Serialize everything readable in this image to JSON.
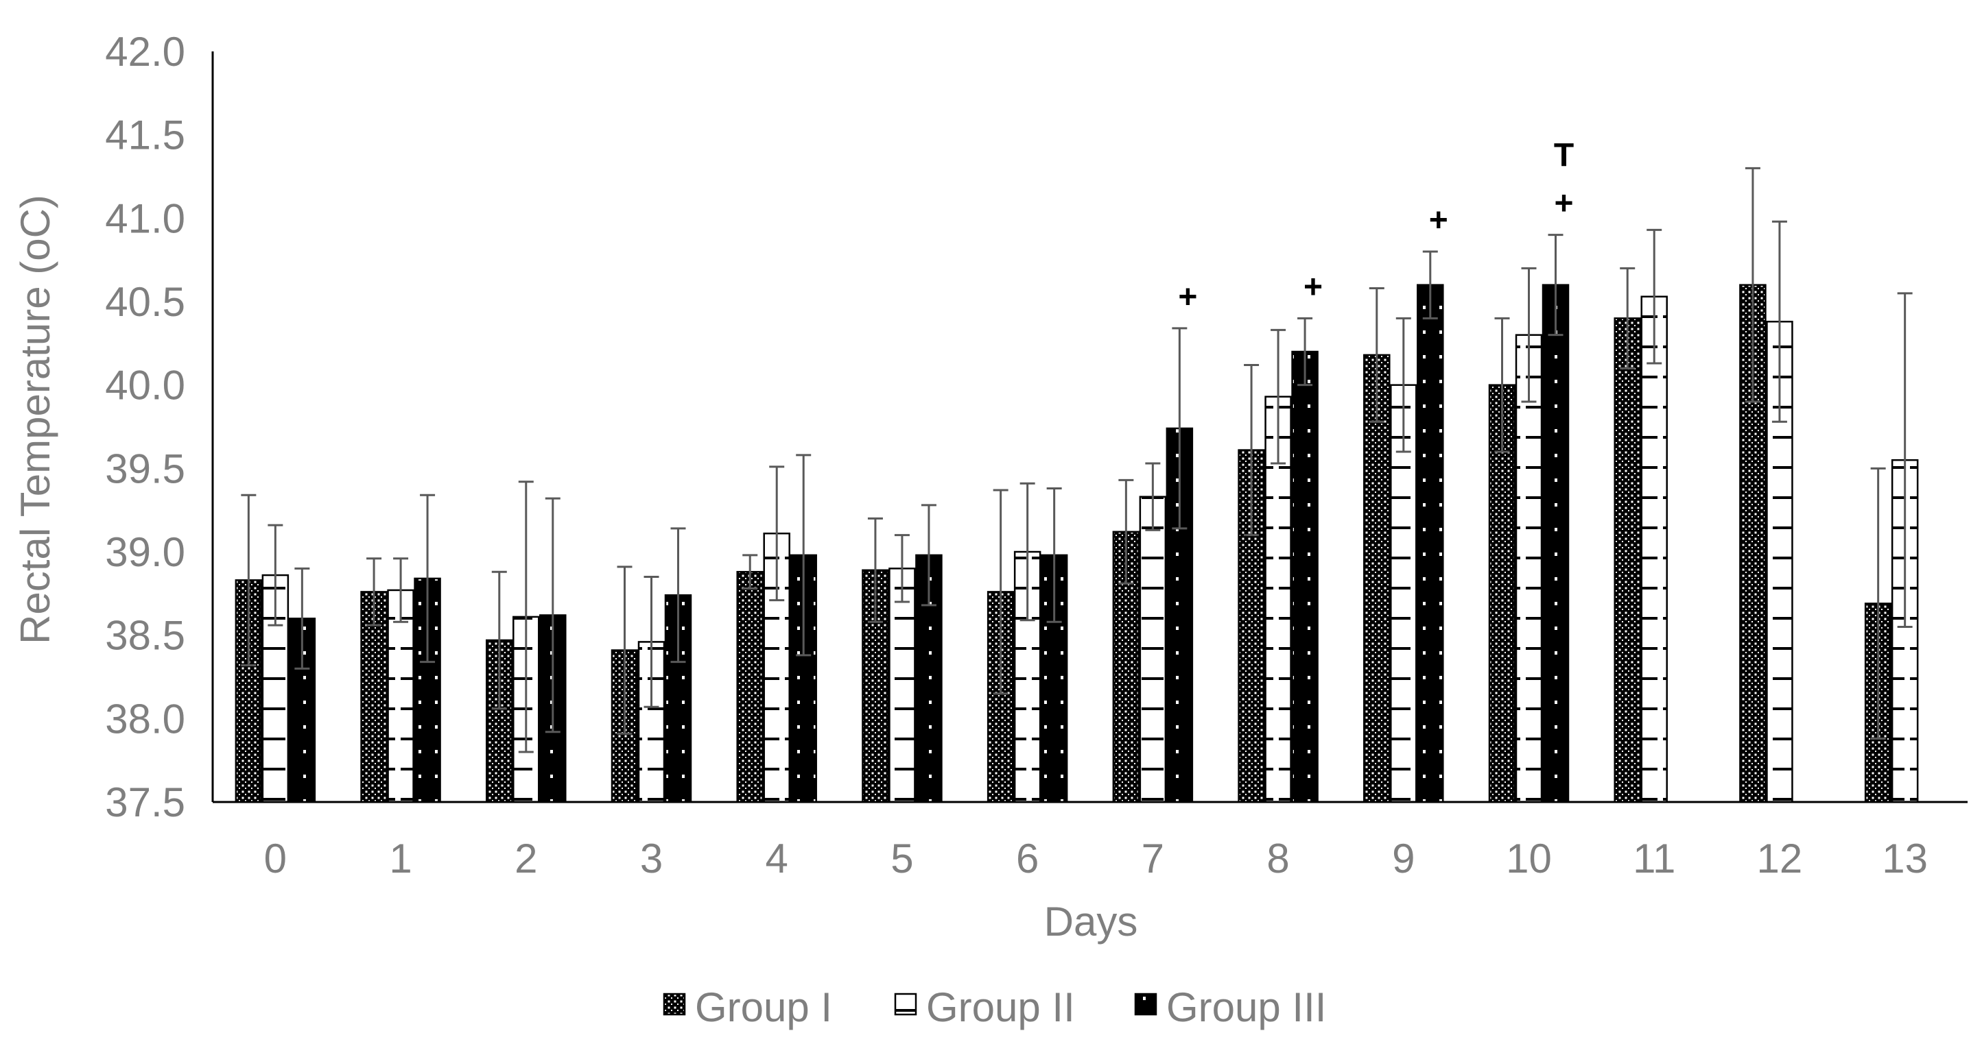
{
  "chart_data": {
    "type": "bar",
    "xlabel": "Days",
    "ylabel_prefix": "Rectal Temperature (",
    "ylabel_unit": "oC",
    "ylabel_suffix": ")",
    "ylim": [
      37.5,
      42.0
    ],
    "yticks": [
      "37.5",
      "38.0",
      "38.5",
      "39.0",
      "39.5",
      "40.0",
      "40.5",
      "41.0",
      "41.5",
      "42.0"
    ],
    "categories": [
      "0",
      "1",
      "2",
      "3",
      "4",
      "5",
      "6",
      "7",
      "8",
      "9",
      "10",
      "11",
      "12",
      "13"
    ],
    "grid": false,
    "legend_position": "bottom",
    "series": [
      {
        "name": "Group I",
        "pattern": "dotted",
        "values": [
          38.83,
          38.76,
          38.47,
          38.41,
          38.88,
          38.89,
          38.76,
          39.12,
          39.61,
          40.18,
          40.0,
          40.4,
          40.6,
          38.69
        ],
        "error": [
          0.51,
          0.2,
          0.41,
          0.5,
          0.1,
          0.31,
          0.61,
          0.31,
          0.51,
          0.4,
          0.4,
          0.3,
          0.7,
          0.81
        ]
      },
      {
        "name": "Group II",
        "pattern": "dashed",
        "values": [
          38.86,
          38.77,
          38.61,
          38.46,
          39.11,
          38.9,
          39.0,
          39.33,
          39.93,
          40.0,
          40.3,
          40.53,
          40.38,
          39.55
        ],
        "error": [
          0.3,
          0.19,
          0.81,
          0.39,
          0.4,
          0.2,
          0.41,
          0.2,
          0.4,
          0.4,
          0.4,
          0.4,
          0.6,
          1.0
        ]
      },
      {
        "name": "Group III",
        "pattern": "dark",
        "values": [
          38.6,
          38.84,
          38.62,
          38.74,
          38.98,
          38.98,
          38.98,
          39.74,
          40.2,
          40.6,
          40.6,
          null,
          null,
          null
        ],
        "error": [
          0.3,
          0.5,
          0.7,
          0.4,
          0.6,
          0.3,
          0.4,
          0.6,
          0.2,
          0.2,
          0.3,
          null,
          null,
          null
        ]
      }
    ],
    "annotations": [
      {
        "category": "7",
        "series": "Group III",
        "text": "+"
      },
      {
        "category": "8",
        "series": "Group III",
        "text": "+"
      },
      {
        "category": "9",
        "series": "Group III",
        "text": "+"
      },
      {
        "category": "10",
        "series": "Group III",
        "text": "+"
      },
      {
        "category": "10",
        "series": "Group III",
        "text": "T"
      }
    ]
  }
}
